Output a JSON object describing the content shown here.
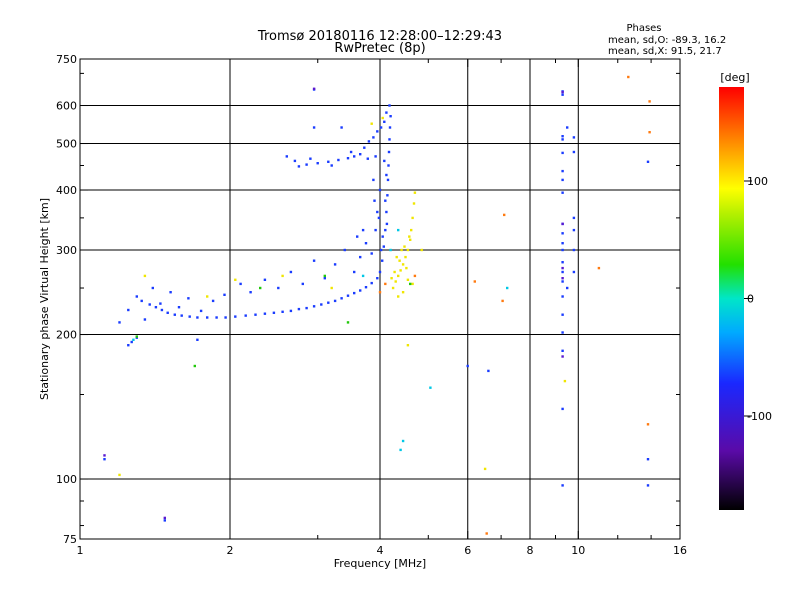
{
  "figure": {
    "title_line1": "Tromsø 20180116 12:28:00–12:29:43",
    "title_line2": "RwPretec (8p)"
  },
  "stats": {
    "heading": "Phases",
    "line_o": "mean, sd,O: -89.3, 16.2",
    "line_x": "mean, sd,X:  91.5, 21.7"
  },
  "colorbar": {
    "unit_label": "[deg]",
    "range": [
      -180,
      180
    ],
    "ticks": [
      {
        "value": 100,
        "label": "100"
      },
      {
        "value": 0,
        "label": "0"
      },
      {
        "value": -100,
        "label": "-100"
      }
    ]
  },
  "chart_data": {
    "type": "scatter",
    "xlabel": "Frequency [MHz]",
    "ylabel": "Stationary phase Virtual Height [km]",
    "xscale": "log",
    "yscale": "log",
    "xlim": [
      1,
      16
    ],
    "ylim": [
      75,
      750
    ],
    "grid": true,
    "xticks": [
      {
        "value": 1,
        "label": "1",
        "grid": false
      },
      {
        "value": 2,
        "label": "2",
        "grid": true
      },
      {
        "value": 4,
        "label": "4",
        "grid": true
      },
      {
        "value": 6,
        "label": "6",
        "grid": true
      },
      {
        "value": 8,
        "label": "8",
        "grid": true
      },
      {
        "value": 10,
        "label": "10",
        "grid": true
      },
      {
        "value": 16,
        "label": "16",
        "grid": false
      }
    ],
    "xminor": [
      3,
      5,
      7,
      9,
      12,
      14
    ],
    "yticks": [
      {
        "value": 75,
        "label": "75",
        "grid": false
      },
      {
        "value": 100,
        "label": "100",
        "grid": true
      },
      {
        "value": 200,
        "label": "200",
        "grid": true
      },
      {
        "value": 300,
        "label": "300",
        "grid": true
      },
      {
        "value": 400,
        "label": "400",
        "grid": true
      },
      {
        "value": 500,
        "label": "500",
        "grid": true
      },
      {
        "value": 600,
        "label": "600",
        "grid": true
      },
      {
        "value": 750,
        "label": "750",
        "grid": false
      }
    ],
    "yminor": [
      80,
      90,
      150,
      250,
      350,
      450,
      700
    ],
    "color_key": "phase [deg]",
    "series": [
      {
        "trace": "o-mode F-layer trace",
        "color": "#1a3cff",
        "points": [
          [
            1.33,
            235
          ],
          [
            1.38,
            231
          ],
          [
            1.42,
            228
          ],
          [
            1.46,
            225
          ],
          [
            1.5,
            222
          ],
          [
            1.55,
            220
          ],
          [
            1.6,
            219
          ],
          [
            1.66,
            218
          ],
          [
            1.72,
            217
          ],
          [
            1.8,
            217
          ],
          [
            1.88,
            217
          ],
          [
            1.96,
            217
          ],
          [
            2.05,
            218
          ],
          [
            2.15,
            219
          ],
          [
            2.25,
            220
          ],
          [
            2.35,
            221
          ],
          [
            2.45,
            222
          ],
          [
            2.55,
            223
          ],
          [
            2.65,
            224
          ],
          [
            2.75,
            226
          ],
          [
            2.85,
            227
          ],
          [
            2.95,
            229
          ],
          [
            3.05,
            231
          ],
          [
            3.15,
            233
          ],
          [
            3.25,
            235
          ],
          [
            3.35,
            238
          ],
          [
            3.45,
            241
          ],
          [
            3.55,
            244
          ],
          [
            3.65,
            247
          ],
          [
            3.75,
            251
          ],
          [
            3.85,
            256
          ],
          [
            3.95,
            262
          ],
          [
            4.0,
            270
          ],
          [
            4.04,
            285
          ],
          [
            4.07,
            305
          ],
          [
            4.1,
            330
          ],
          [
            4.12,
            360
          ],
          [
            4.14,
            390
          ],
          [
            4.15,
            420
          ],
          [
            4.16,
            450
          ],
          [
            4.17,
            480
          ],
          [
            4.18,
            510
          ],
          [
            4.19,
            540
          ],
          [
            4.2,
            570
          ],
          [
            1.2,
            212
          ],
          [
            1.25,
            225
          ],
          [
            1.3,
            240
          ],
          [
            1.35,
            215
          ],
          [
            1.4,
            250
          ],
          [
            1.45,
            232
          ],
          [
            1.52,
            245
          ],
          [
            1.58,
            228
          ],
          [
            1.65,
            238
          ],
          [
            1.75,
            224
          ],
          [
            1.85,
            235
          ],
          [
            1.95,
            242
          ],
          [
            2.1,
            255
          ],
          [
            2.2,
            245
          ],
          [
            2.35,
            260
          ],
          [
            2.5,
            250
          ],
          [
            2.65,
            270
          ],
          [
            2.8,
            255
          ],
          [
            2.95,
            285
          ],
          [
            3.1,
            262
          ],
          [
            3.25,
            280
          ],
          [
            3.4,
            300
          ],
          [
            3.55,
            270
          ],
          [
            3.65,
            290
          ],
          [
            3.75,
            310
          ],
          [
            3.85,
            295
          ],
          [
            3.92,
            330
          ],
          [
            3.98,
            350
          ],
          [
            4.02,
            300
          ],
          [
            4.05,
            320
          ],
          [
            4.1,
            380
          ],
          [
            4.13,
            340
          ],
          [
            4.0,
            400
          ],
          [
            3.95,
            360
          ],
          [
            3.9,
            380
          ],
          [
            3.88,
            420
          ],
          [
            4.08,
            460
          ],
          [
            4.12,
            430
          ],
          [
            3.7,
            330
          ],
          [
            3.6,
            320
          ],
          [
            2.7,
            460
          ],
          [
            2.85,
            452
          ],
          [
            3.0,
            455
          ],
          [
            3.15,
            458
          ],
          [
            3.3,
            462
          ],
          [
            3.45,
            466
          ],
          [
            3.55,
            470
          ],
          [
            3.65,
            475
          ],
          [
            3.72,
            490
          ],
          [
            3.8,
            505
          ],
          [
            3.88,
            515
          ],
          [
            3.95,
            530
          ],
          [
            4.02,
            540
          ],
          [
            4.08,
            555
          ],
          [
            2.6,
            470
          ],
          [
            2.75,
            448
          ],
          [
            2.9,
            465
          ],
          [
            3.2,
            450
          ],
          [
            3.5,
            480
          ],
          [
            3.78,
            465
          ],
          [
            3.92,
            470
          ],
          [
            2.95,
            648
          ],
          [
            2.95,
            540
          ],
          [
            3.35,
            540
          ],
          [
            4.18,
            600
          ],
          [
            4.12,
            580
          ],
          [
            1.25,
            190
          ],
          [
            1.27,
            193
          ],
          [
            1.3,
            197
          ],
          [
            1.12,
            110
          ],
          [
            1.48,
            82
          ],
          [
            1.72,
            195
          ]
        ]
      },
      {
        "trace": "x-mode trace",
        "color": "#f0e600",
        "points": [
          [
            4.25,
            250
          ],
          [
            4.3,
            258
          ],
          [
            4.35,
            265
          ],
          [
            4.4,
            272
          ],
          [
            4.45,
            280
          ],
          [
            4.5,
            290
          ],
          [
            4.55,
            300
          ],
          [
            4.6,
            315
          ],
          [
            4.62,
            330
          ],
          [
            4.65,
            350
          ],
          [
            4.68,
            375
          ],
          [
            4.7,
            395
          ],
          [
            4.28,
            270
          ],
          [
            4.38,
            285
          ],
          [
            4.48,
            305
          ],
          [
            4.58,
            320
          ],
          [
            4.32,
            290
          ],
          [
            4.42,
            300
          ],
          [
            4.52,
            275
          ],
          [
            4.22,
            262
          ],
          [
            4.55,
            260
          ],
          [
            4.65,
            255
          ],
          [
            4.45,
            245
          ],
          [
            4.35,
            240
          ],
          [
            1.35,
            265
          ],
          [
            1.8,
            240
          ],
          [
            2.05,
            260
          ],
          [
            2.55,
            265
          ],
          [
            3.2,
            250
          ],
          [
            4.85,
            300
          ],
          [
            4.05,
            565
          ],
          [
            3.85,
            550
          ],
          [
            1.2,
            102
          ],
          [
            4.55,
            190
          ],
          [
            6.5,
            105
          ],
          [
            9.4,
            160
          ]
        ]
      },
      {
        "trace": "cyan points",
        "color": "#00c8e6",
        "points": [
          [
            4.45,
            120
          ],
          [
            4.4,
            115
          ],
          [
            5.05,
            155
          ],
          [
            7.2,
            250
          ],
          [
            3.7,
            265
          ],
          [
            4.2,
            300
          ],
          [
            4.35,
            330
          ],
          [
            1.28,
            195
          ]
        ]
      },
      {
        "trace": "green points",
        "color": "#22c80a",
        "points": [
          [
            3.45,
            212
          ],
          [
            1.3,
            198
          ],
          [
            4.6,
            255
          ],
          [
            3.1,
            265
          ],
          [
            2.3,
            250
          ],
          [
            1.7,
            172
          ]
        ]
      },
      {
        "trace": "orange points",
        "color": "#ff7a10",
        "points": [
          [
            4.0,
            245
          ],
          [
            4.1,
            255
          ],
          [
            6.2,
            258
          ],
          [
            7.1,
            355
          ],
          [
            7.05,
            235
          ],
          [
            6.55,
            77
          ],
          [
            11.0,
            275
          ],
          [
            13.8,
            130
          ],
          [
            13.9,
            528
          ],
          [
            13.9,
            612
          ],
          [
            12.6,
            688
          ],
          [
            4.7,
            265
          ]
        ]
      },
      {
        "trace": "blue scatter 6-16 MHz",
        "color": "#1a3cff",
        "points": [
          [
            6.0,
            172
          ],
          [
            6.6,
            168
          ],
          [
            9.3,
            642
          ],
          [
            9.3,
            632
          ],
          [
            9.3,
            518
          ],
          [
            9.3,
            510
          ],
          [
            9.3,
            478
          ],
          [
            9.3,
            438
          ],
          [
            9.3,
            420
          ],
          [
            9.3,
            395
          ],
          [
            9.3,
            340
          ],
          [
            9.3,
            325
          ],
          [
            9.3,
            310
          ],
          [
            9.3,
            300
          ],
          [
            9.3,
            283
          ],
          [
            9.3,
            270
          ],
          [
            9.3,
            258
          ],
          [
            9.3,
            240
          ],
          [
            9.3,
            220
          ],
          [
            9.3,
            202
          ],
          [
            9.3,
            185
          ],
          [
            9.3,
            140
          ],
          [
            9.3,
            97
          ],
          [
            9.8,
            515
          ],
          [
            9.8,
            480
          ],
          [
            9.8,
            350
          ],
          [
            9.8,
            330
          ],
          [
            9.8,
            300
          ],
          [
            9.8,
            270
          ],
          [
            13.8,
            458
          ],
          [
            13.8,
            110
          ],
          [
            13.8,
            97
          ],
          [
            9.5,
            540
          ],
          [
            9.5,
            250
          ]
        ]
      },
      {
        "trace": "purple points",
        "color": "#5a1ad0",
        "points": [
          [
            9.3,
            340
          ],
          [
            9.3,
            275
          ],
          [
            9.3,
            262
          ],
          [
            9.3,
            180
          ],
          [
            9.3,
            640
          ],
          [
            2.95,
            650
          ],
          [
            1.12,
            112
          ],
          [
            1.48,
            83
          ]
        ]
      }
    ]
  }
}
